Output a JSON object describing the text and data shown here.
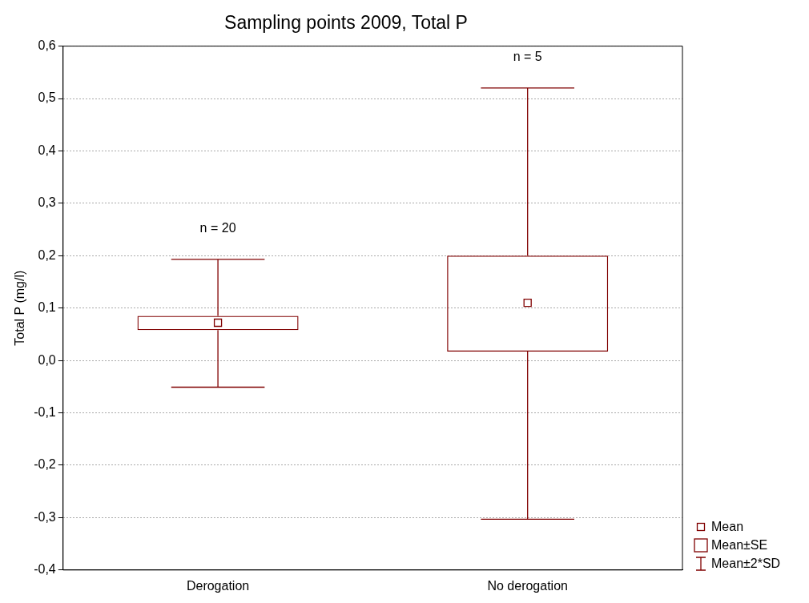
{
  "chart_data": {
    "type": "box",
    "title": "Sampling points 2009, Total P",
    "ylabel": "Total P (mg/l)",
    "categories": [
      "Derogation",
      "No derogation"
    ],
    "color": "#800000",
    "boxes": [
      {
        "low": -0.051,
        "q1": 0.058,
        "median": 0.072,
        "q3": 0.085,
        "high": 0.193
      },
      {
        "low": -0.303,
        "q1": 0.017,
        "median": 0.11,
        "q3": 0.2,
        "high": 0.52
      }
    ],
    "ylim": [
      -0.4,
      0.6
    ],
    "yticks": [
      {
        "value": -0.4,
        "label": "-0,4"
      },
      {
        "value": -0.3,
        "label": "-0,3"
      },
      {
        "value": -0.2,
        "label": "-0,2"
      },
      {
        "value": -0.1,
        "label": "-0,1"
      },
      {
        "value": 0,
        "label": "0,0"
      },
      {
        "value": 0.1,
        "label": "0,1"
      },
      {
        "value": 0.2,
        "label": "0,2"
      },
      {
        "value": 0.3,
        "label": "0,3"
      },
      {
        "value": 0.4,
        "label": "0,4"
      },
      {
        "value": 0.5,
        "label": "0,5"
      },
      {
        "value": 0.6,
        "label": "0,6"
      }
    ],
    "grid": "y",
    "annotations": [
      "n = 20",
      "n = 5",
      "Mean",
      "Mean±SE",
      "Mean±2*SD"
    ]
  }
}
